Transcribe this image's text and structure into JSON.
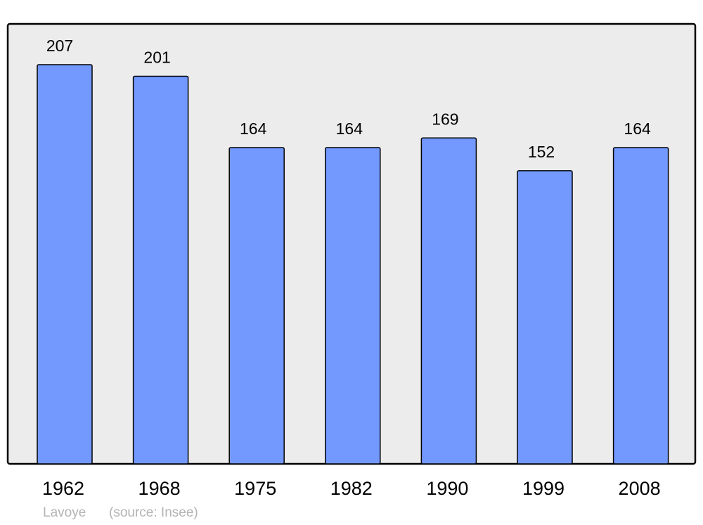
{
  "chart_data": {
    "type": "bar",
    "categories": [
      "1962",
      "1968",
      "1975",
      "1982",
      "1990",
      "1999",
      "2008"
    ],
    "values": [
      207,
      201,
      164,
      164,
      169,
      152,
      164
    ],
    "title": "",
    "xlabel": "",
    "ylabel": "",
    "ylim": [
      0,
      228
    ],
    "grid": false,
    "data_labels": true,
    "colors": {
      "bar": "#7399ff",
      "background": "#ececec",
      "outline": "#000000"
    }
  },
  "footer": {
    "commune": "Lavoye",
    "source": "(source: Insee)"
  }
}
